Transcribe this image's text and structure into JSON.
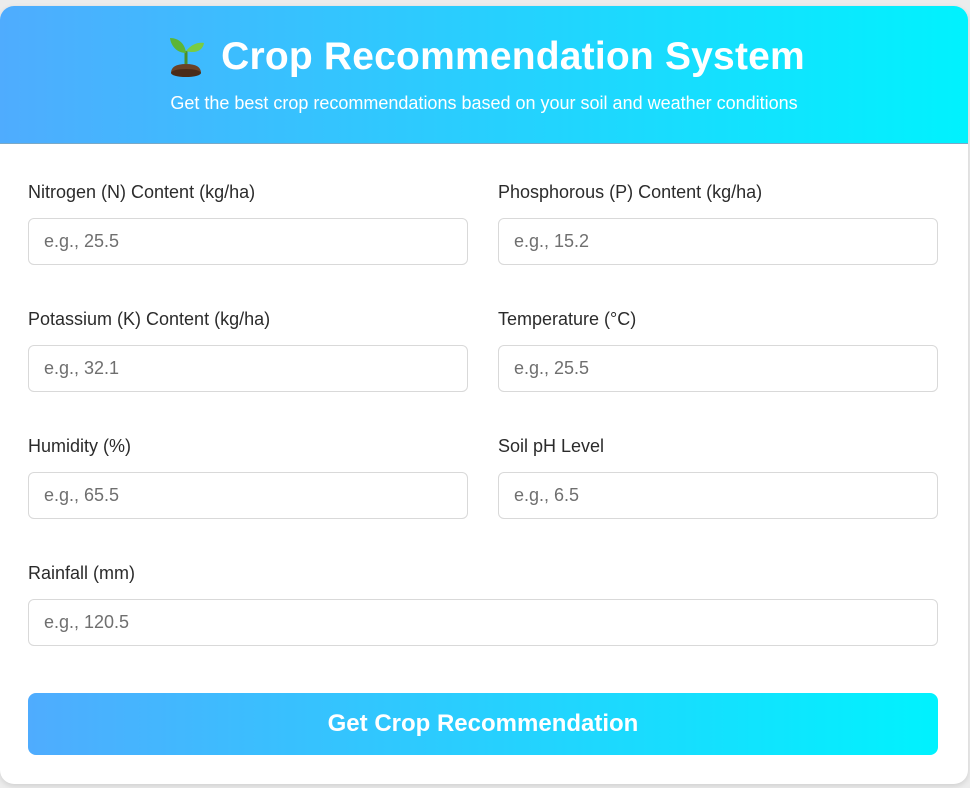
{
  "header": {
    "icon": "sprout-icon",
    "title": "Crop Recommendation System",
    "subtitle": "Get the best crop recommendations based on your soil and weather conditions"
  },
  "fields": {
    "nitrogen": {
      "label": "Nitrogen (N) Content (kg/ha)",
      "placeholder": "e.g., 25.5",
      "value": ""
    },
    "phosphorous": {
      "label": "Phosphorous (P) Content (kg/ha)",
      "placeholder": "e.g., 15.2",
      "value": ""
    },
    "potassium": {
      "label": "Potassium (K) Content (kg/ha)",
      "placeholder": "e.g., 32.1",
      "value": ""
    },
    "temperature": {
      "label": "Temperature (°C)",
      "placeholder": "e.g., 25.5",
      "value": ""
    },
    "humidity": {
      "label": "Humidity (%)",
      "placeholder": "e.g., 65.5",
      "value": ""
    },
    "ph": {
      "label": "Soil pH Level",
      "placeholder": "e.g., 6.5",
      "value": ""
    },
    "rainfall": {
      "label": "Rainfall (mm)",
      "placeholder": "e.g., 120.5",
      "value": ""
    }
  },
  "submit": {
    "label": "Get Crop Recommendation"
  },
  "colors": {
    "gradient_start": "#4facfe",
    "gradient_end": "#00f2fe",
    "text": "#2b2b2b",
    "border": "#d9d9d9"
  }
}
